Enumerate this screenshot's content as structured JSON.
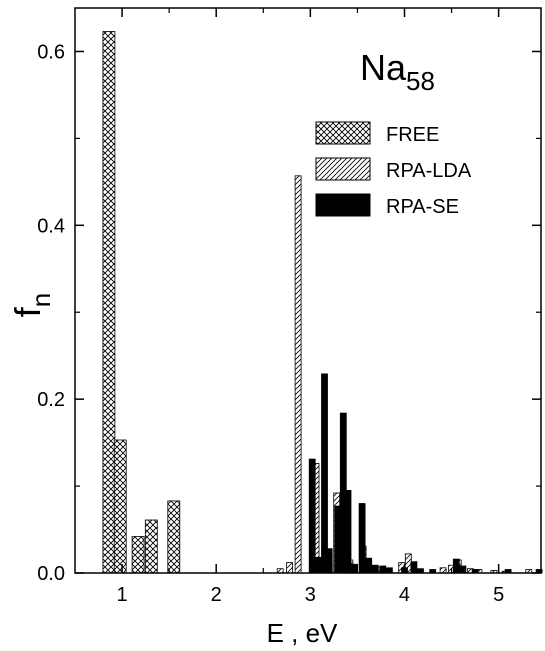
{
  "chart_data": {
    "type": "bar",
    "title": "Na58",
    "title_main": "Na",
    "title_sub": "58",
    "xlabel": "E , eV",
    "ylabel_main": "f",
    "ylabel_sub": "n",
    "xlim": [
      0.5,
      5.45
    ],
    "ylim": [
      0.0,
      0.65
    ],
    "x_ticks": [
      1,
      2,
      3,
      4,
      5
    ],
    "x_tick_labels": [
      "1",
      "2",
      "3",
      "4",
      "5"
    ],
    "y_ticks": [
      0.0,
      0.2,
      0.4,
      0.6
    ],
    "y_tick_labels": [
      "0.0",
      "0.2",
      "0.4",
      "0.6"
    ],
    "legend_position": "top-right",
    "series": [
      {
        "name": "FREE",
        "pattern": "crosshatch",
        "points": [
          {
            "x": 0.86,
            "y": 0.623
          },
          {
            "x": 0.98,
            "y": 0.153
          },
          {
            "x": 1.17,
            "y": 0.042
          },
          {
            "x": 1.31,
            "y": 0.061
          },
          {
            "x": 1.55,
            "y": 0.083
          }
        ]
      },
      {
        "name": "RPA-LDA",
        "pattern": "diagonal",
        "points": [
          {
            "x": 2.68,
            "y": 0.005
          },
          {
            "x": 2.78,
            "y": 0.012
          },
          {
            "x": 2.87,
            "y": 0.457
          },
          {
            "x": 3.06,
            "y": 0.126
          },
          {
            "x": 3.2,
            "y": 0.012
          },
          {
            "x": 3.28,
            "y": 0.092
          },
          {
            "x": 3.35,
            "y": 0.022
          },
          {
            "x": 3.42,
            "y": 0.015
          },
          {
            "x": 3.56,
            "y": 0.031
          },
          {
            "x": 3.75,
            "y": 0.006
          },
          {
            "x": 3.97,
            "y": 0.012
          },
          {
            "x": 4.04,
            "y": 0.022
          },
          {
            "x": 4.41,
            "y": 0.006
          },
          {
            "x": 4.5,
            "y": 0.009
          },
          {
            "x": 4.57,
            "y": 0.015
          },
          {
            "x": 4.7,
            "y": 0.005
          },
          {
            "x": 4.79,
            "y": 0.004
          },
          {
            "x": 4.95,
            "y": 0.003
          },
          {
            "x": 5.07,
            "y": 0.002
          },
          {
            "x": 5.32,
            "y": 0.004
          }
        ]
      },
      {
        "name": "RPA-SE",
        "pattern": "solid",
        "points": [
          {
            "x": 3.02,
            "y": 0.131
          },
          {
            "x": 3.09,
            "y": 0.018
          },
          {
            "x": 3.15,
            "y": 0.229
          },
          {
            "x": 3.2,
            "y": 0.028
          },
          {
            "x": 3.29,
            "y": 0.077
          },
          {
            "x": 3.35,
            "y": 0.184
          },
          {
            "x": 3.4,
            "y": 0.095
          },
          {
            "x": 3.47,
            "y": 0.01
          },
          {
            "x": 3.55,
            "y": 0.08
          },
          {
            "x": 3.62,
            "y": 0.017
          },
          {
            "x": 3.69,
            "y": 0.009
          },
          {
            "x": 3.77,
            "y": 0.008
          },
          {
            "x": 3.84,
            "y": 0.006
          },
          {
            "x": 4.0,
            "y": 0.006
          },
          {
            "x": 4.1,
            "y": 0.013
          },
          {
            "x": 4.17,
            "y": 0.005
          },
          {
            "x": 4.3,
            "y": 0.004
          },
          {
            "x": 4.55,
            "y": 0.016
          },
          {
            "x": 4.62,
            "y": 0.008
          },
          {
            "x": 4.75,
            "y": 0.004
          },
          {
            "x": 5.1,
            "y": 0.004
          },
          {
            "x": 5.43,
            "y": 0.004
          }
        ]
      }
    ]
  }
}
